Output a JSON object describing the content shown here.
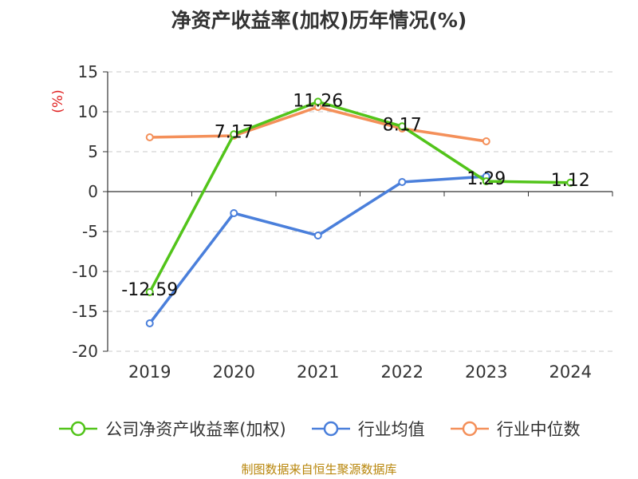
{
  "chart_data": {
    "type": "line",
    "title": "净资产收益率(加权)历年情况(%)",
    "ylabel": "(%)",
    "xlabel": "",
    "categories": [
      "2019",
      "2020",
      "2021",
      "2022",
      "2023",
      "2024"
    ],
    "ylim": [
      -20,
      15
    ],
    "yticks": [
      15,
      10,
      5,
      0,
      -5,
      -10,
      -15,
      -20
    ],
    "grid": true,
    "legend_position": "bottom",
    "series": [
      {
        "name": "公司净资产收益率(加权)",
        "color": "#52c41a",
        "values": [
          -12.59,
          7.17,
          11.26,
          8.17,
          1.29,
          1.12
        ],
        "labels": [
          "-12.59",
          "7.17",
          "11.26",
          "8.17",
          "1.29",
          "1.12"
        ]
      },
      {
        "name": "行业均值",
        "color": "#4a7fdb",
        "values": [
          -16.5,
          -2.7,
          -5.5,
          1.2,
          1.9,
          null
        ]
      },
      {
        "name": "行业中位数",
        "color": "#f4905a",
        "values": [
          6.8,
          7.0,
          10.6,
          7.9,
          6.3,
          null
        ]
      }
    ],
    "source": "制图数据来自恒生聚源数据库"
  }
}
